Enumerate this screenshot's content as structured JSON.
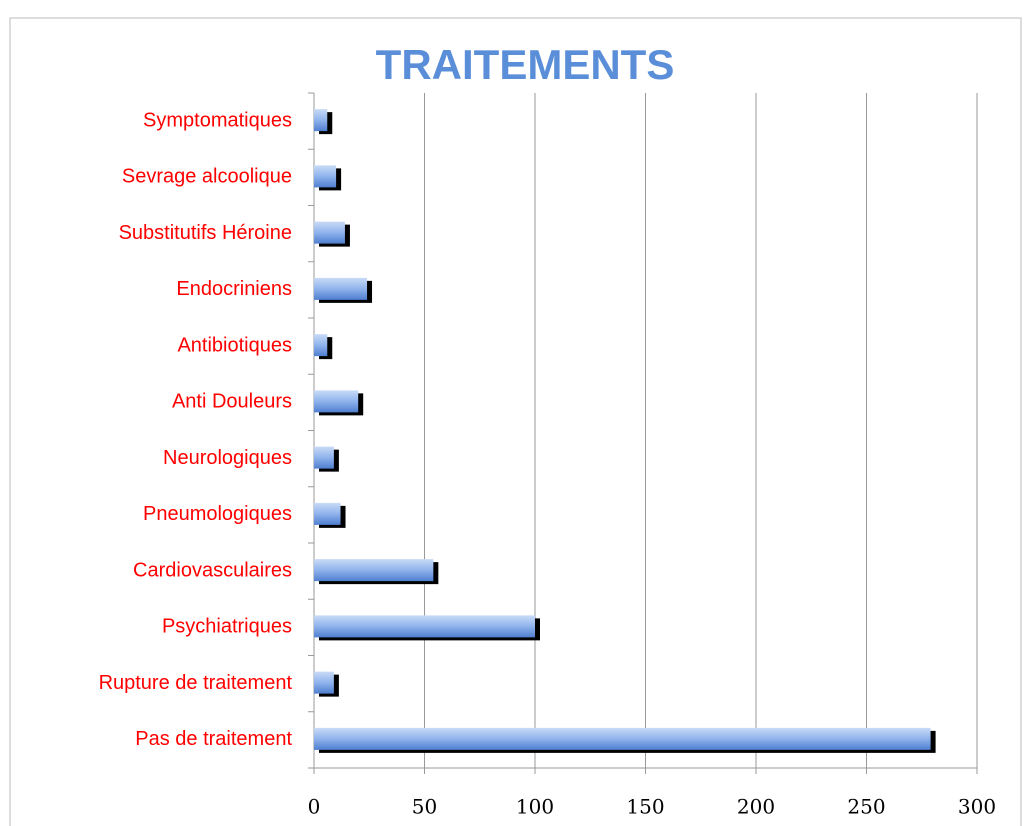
{
  "chart_data": {
    "type": "barh",
    "title": "TRAITEMENTS",
    "categories": [
      "Symptomatiques",
      "Sevrage alcoolique",
      "Substitutifs Héroine",
      "Endocriniens",
      "Antibiotiques",
      "Anti Douleurs",
      "Neurologiques",
      "Pneumologiques",
      "Cardiovasculaires",
      "Psychiatriques",
      "Rupture de traitement",
      "Pas de traitement"
    ],
    "values": [
      6,
      10,
      14,
      24,
      6,
      20,
      9,
      12,
      54,
      100,
      9,
      279
    ],
    "xlim": [
      0,
      300
    ],
    "xticks": [
      0,
      50,
      100,
      150,
      200,
      250,
      300
    ],
    "grid": true
  }
}
